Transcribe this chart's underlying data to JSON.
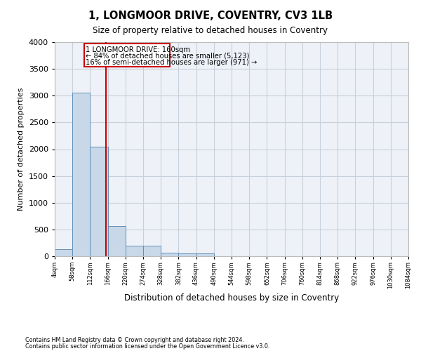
{
  "title": "1, LONGMOOR DRIVE, COVENTRY, CV3 1LB",
  "subtitle": "Size of property relative to detached houses in Coventry",
  "xlabel": "Distribution of detached houses by size in Coventry",
  "ylabel": "Number of detached properties",
  "footnote1": "Contains HM Land Registry data © Crown copyright and database right 2024.",
  "footnote2": "Contains public sector information licensed under the Open Government Licence v3.0.",
  "annotation_line1": "1 LONGMOOR DRIVE: 160sqm",
  "annotation_line2": "← 84% of detached houses are smaller (5,123)",
  "annotation_line3": "16% of semi-detached houses are larger (971) →",
  "bar_color": "#c8d8e8",
  "bar_edge_color": "#6090b8",
  "grid_color": "#c8d0dc",
  "red_line_color": "#cc0000",
  "red_box_color": "#cc0000",
  "bins": [
    4,
    58,
    112,
    166,
    220,
    274,
    328,
    382,
    436,
    490,
    544,
    598,
    652,
    706,
    760,
    814,
    868,
    922,
    976,
    1030,
    1084
  ],
  "counts": [
    130,
    3060,
    2040,
    560,
    195,
    195,
    65,
    50,
    50,
    0,
    0,
    0,
    0,
    0,
    0,
    0,
    0,
    0,
    0,
    0
  ],
  "property_size": 160,
  "ylim": [
    0,
    4000
  ],
  "yticks": [
    0,
    500,
    1000,
    1500,
    2000,
    2500,
    3000,
    3500,
    4000
  ],
  "background_color": "#ffffff",
  "plot_bg_color": "#eef2f8"
}
